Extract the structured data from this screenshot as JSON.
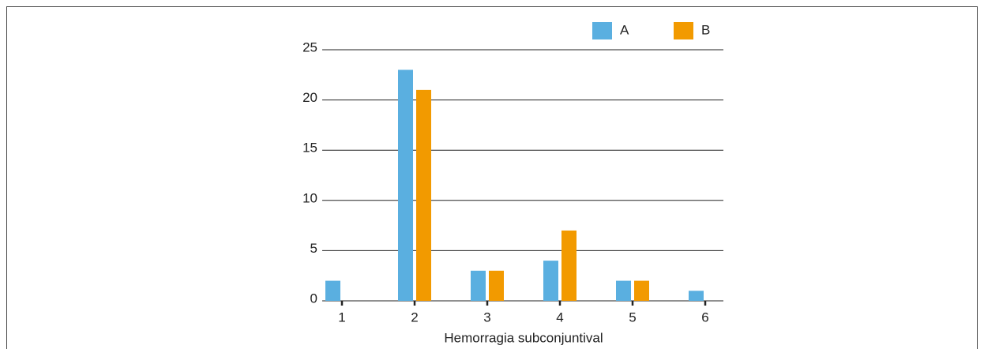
{
  "chart_data": {
    "type": "bar",
    "x_label": "Hemorragia subconjuntival",
    "categories": [
      "1",
      "2",
      "3",
      "4",
      "5",
      "6"
    ],
    "series": [
      {
        "name": "A",
        "color": "#5aafe0",
        "values": [
          2,
          23,
          3,
          4,
          2,
          1
        ]
      },
      {
        "name": "B",
        "color": "#f29a00",
        "values": [
          0,
          21,
          3,
          7,
          2,
          0
        ]
      }
    ],
    "ylim": [
      0,
      25
    ],
    "yticks": [
      0,
      5,
      10,
      15,
      20,
      25
    ],
    "grid": true,
    "legend": "top-right"
  }
}
